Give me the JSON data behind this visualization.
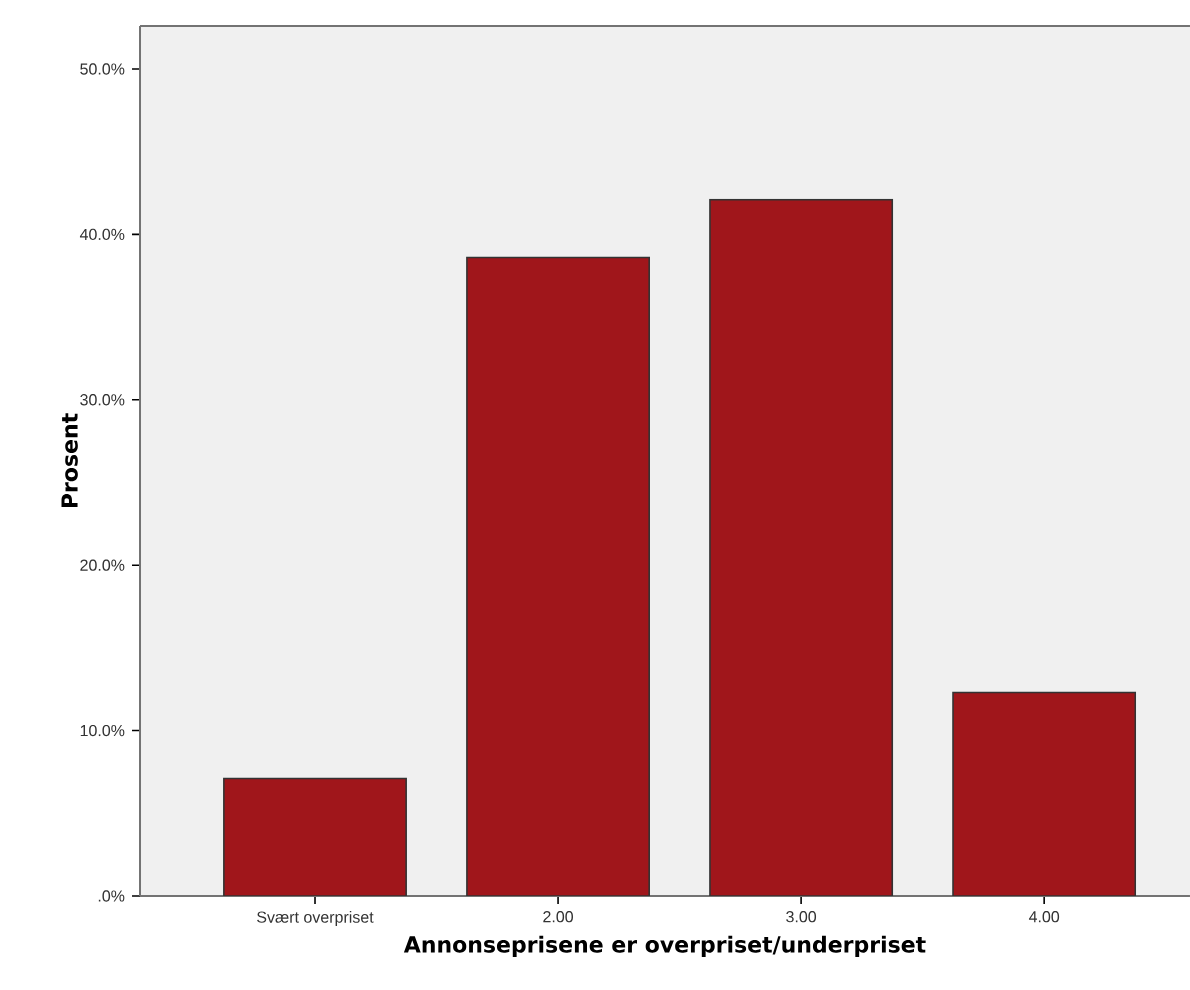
{
  "chart_data": {
    "type": "bar",
    "xlabel": "Annonseprisene er overpriset/underpriset",
    "ylabel": "Prosent",
    "categories": [
      "Svært overpriset",
      "2.00",
      "3.00",
      "4.00"
    ],
    "values": [
      7.1,
      38.6,
      42.1,
      12.3
    ],
    "color": "#a0161b",
    "ylim": [
      0,
      52.6
    ],
    "yticks": [
      {
        "value": 0,
        "label": ".0%"
      },
      {
        "value": 10,
        "label": "10.0%"
      },
      {
        "value": 20,
        "label": "20.0%"
      },
      {
        "value": 30,
        "label": "30.0%"
      },
      {
        "value": 40,
        "label": "40.0%"
      },
      {
        "value": 50,
        "label": "50.0%"
      }
    ],
    "grid": false
  }
}
